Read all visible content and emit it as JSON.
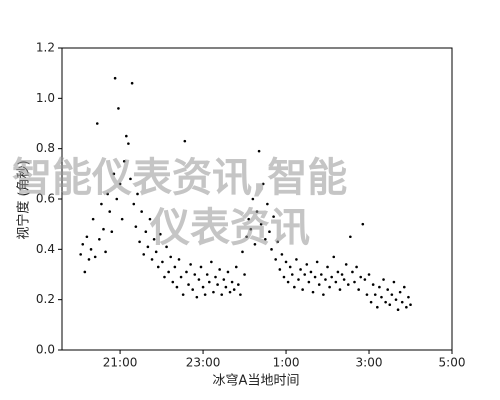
{
  "chart_data": {
    "type": "scatter",
    "x_label": "冰穹A当地时间",
    "y_label": "视宁度 (角秒)",
    "watermark": [
      "智能仪表资讯,智能",
      "仪表资讯"
    ],
    "xlim": [
      19.6,
      29
    ],
    "ylim": [
      0,
      1.2
    ],
    "xticks": [
      {
        "value": 21,
        "label": "21:00"
      },
      {
        "value": 23,
        "label": "23:00"
      },
      {
        "value": 25,
        "label": "1:00"
      },
      {
        "value": 27,
        "label": "3:00"
      },
      {
        "value": 29,
        "label": "5:00"
      }
    ],
    "yticks": [
      {
        "value": 0,
        "label": "0.0"
      },
      0.2,
      0.4,
      0.6,
      0.8,
      {
        "value": 1,
        "label": "1.0"
      },
      1.2
    ],
    "color": "#000000",
    "x": [
      20.05,
      20.1,
      20.15,
      20.2,
      20.25,
      20.3,
      20.35,
      20.4,
      20.45,
      20.5,
      20.55,
      20.6,
      20.65,
      20.7,
      20.75,
      20.8,
      20.85,
      20.88,
      20.92,
      20.96,
      21.0,
      21.05,
      21.1,
      21.15,
      21.2,
      21.25,
      21.29,
      21.33,
      21.38,
      21.42,
      21.47,
      21.52,
      21.57,
      21.62,
      21.67,
      21.72,
      21.77,
      21.82,
      21.87,
      21.92,
      21.97,
      22.02,
      22.07,
      22.12,
      22.17,
      22.22,
      22.27,
      22.32,
      22.37,
      22.42,
      22.47,
      22.52,
      22.56,
      22.6,
      22.65,
      22.7,
      22.75,
      22.8,
      22.85,
      22.9,
      22.95,
      23.0,
      23.05,
      23.1,
      23.15,
      23.2,
      23.25,
      23.3,
      23.35,
      23.4,
      23.45,
      23.5,
      23.55,
      23.6,
      23.65,
      23.7,
      23.75,
      23.8,
      23.85,
      23.9,
      23.95,
      24.0,
      24.05,
      24.1,
      24.15,
      24.2,
      24.25,
      24.3,
      24.35,
      24.4,
      24.45,
      24.5,
      24.55,
      24.6,
      24.65,
      24.7,
      24.75,
      24.8,
      24.85,
      24.9,
      24.95,
      25.0,
      25.05,
      25.1,
      25.15,
      25.2,
      25.25,
      25.3,
      25.35,
      25.4,
      25.45,
      25.5,
      25.55,
      25.6,
      25.65,
      25.7,
      25.75,
      25.8,
      25.85,
      25.9,
      25.95,
      26.0,
      26.05,
      26.1,
      26.15,
      26.2,
      26.25,
      26.3,
      26.35,
      26.4,
      26.45,
      26.5,
      26.55,
      26.6,
      26.65,
      26.7,
      26.75,
      26.8,
      26.85,
      26.9,
      26.95,
      27.0,
      27.05,
      27.1,
      27.15,
      27.2,
      27.25,
      27.3,
      27.35,
      27.4,
      27.45,
      27.5,
      27.55,
      27.6,
      27.65,
      27.7,
      27.75,
      27.8,
      27.85,
      27.9,
      27.95,
      28.0
    ],
    "values": [
      0.38,
      0.42,
      0.31,
      0.45,
      0.36,
      0.4,
      0.52,
      0.37,
      0.9,
      0.44,
      0.58,
      0.48,
      0.39,
      0.62,
      0.55,
      0.47,
      0.7,
      1.08,
      0.6,
      0.96,
      0.66,
      0.52,
      0.75,
      0.85,
      0.82,
      0.68,
      1.06,
      0.58,
      0.49,
      0.62,
      0.43,
      0.55,
      0.38,
      0.47,
      0.41,
      0.52,
      0.36,
      0.44,
      0.39,
      0.33,
      0.46,
      0.35,
      0.29,
      0.41,
      0.31,
      0.37,
      0.27,
      0.33,
      0.25,
      0.36,
      0.29,
      0.22,
      0.83,
      0.31,
      0.26,
      0.34,
      0.24,
      0.3,
      0.21,
      0.28,
      0.33,
      0.25,
      0.22,
      0.3,
      0.27,
      0.35,
      0.23,
      0.29,
      0.26,
      0.32,
      0.22,
      0.28,
      0.25,
      0.31,
      0.23,
      0.27,
      0.24,
      0.33,
      0.26,
      0.22,
      0.39,
      0.3,
      0.45,
      0.52,
      0.48,
      0.6,
      0.42,
      0.55,
      0.79,
      0.5,
      0.66,
      0.44,
      0.58,
      0.47,
      0.4,
      0.53,
      0.36,
      0.43,
      0.32,
      0.38,
      0.29,
      0.35,
      0.27,
      0.33,
      0.3,
      0.25,
      0.36,
      0.28,
      0.32,
      0.24,
      0.3,
      0.34,
      0.27,
      0.31,
      0.23,
      0.29,
      0.35,
      0.26,
      0.3,
      0.22,
      0.28,
      0.33,
      0.25,
      0.29,
      0.37,
      0.27,
      0.31,
      0.24,
      0.3,
      0.28,
      0.34,
      0.26,
      0.45,
      0.31,
      0.27,
      0.33,
      0.24,
      0.29,
      0.5,
      0.28,
      0.22,
      0.3,
      0.19,
      0.26,
      0.22,
      0.17,
      0.25,
      0.21,
      0.28,
      0.19,
      0.24,
      0.18,
      0.22,
      0.27,
      0.2,
      0.16,
      0.23,
      0.19,
      0.25,
      0.17,
      0.21,
      0.18
    ]
  }
}
